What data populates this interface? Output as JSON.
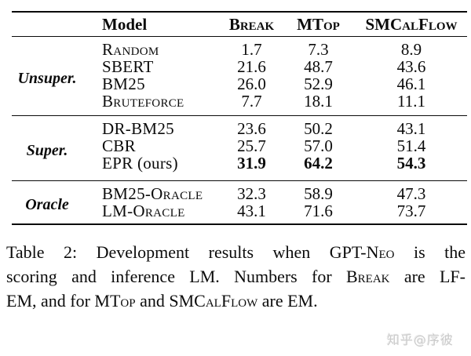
{
  "table": {
    "header": {
      "model": "Model",
      "cols": [
        "Break",
        "MTop",
        "SMCalFlow"
      ]
    },
    "groups": [
      {
        "label": "Unsuper.",
        "rows": [
          {
            "model": "Random",
            "sc": true,
            "values": [
              "1.7",
              "7.3",
              "8.9"
            ],
            "bold": false
          },
          {
            "model": "SBERT",
            "sc": false,
            "values": [
              "21.6",
              "48.7",
              "43.6"
            ],
            "bold": false
          },
          {
            "model": "BM25",
            "sc": false,
            "values": [
              "26.0",
              "52.9",
              "46.1"
            ],
            "bold": false
          },
          {
            "model": "Bruteforce",
            "sc": true,
            "values": [
              "7.7",
              "18.1",
              "11.1"
            ],
            "bold": false
          }
        ]
      },
      {
        "label": "Super.",
        "rows": [
          {
            "model": "DR-BM25",
            "sc": false,
            "values": [
              "23.6",
              "50.2",
              "43.1"
            ],
            "bold": false
          },
          {
            "model": "CBR",
            "sc": false,
            "values": [
              "25.7",
              "57.0",
              "51.4"
            ],
            "bold": false
          },
          {
            "model": "EPR (ours)",
            "sc": false,
            "values": [
              "31.9",
              "64.2",
              "54.3"
            ],
            "bold": true
          }
        ]
      },
      {
        "label": "Oracle",
        "rows": [
          {
            "model": "BM25-Oracle",
            "sc": true,
            "values": [
              "32.3",
              "58.9",
              "47.3"
            ],
            "bold": false
          },
          {
            "model": "LM-Oracle",
            "sc": true,
            "values": [
              "43.1",
              "71.6",
              "73.7"
            ],
            "bold": false
          }
        ]
      }
    ]
  },
  "caption": {
    "lines": [
      [
        {
          "t": "Table 2:  Development results when GPT-",
          "sc": false
        },
        {
          "t": "Neo",
          "sc": true
        },
        {
          "t": " is the",
          "sc": false
        }
      ],
      [
        {
          "t": "scoring and inference LM. Numbers for ",
          "sc": false
        },
        {
          "t": "Break",
          "sc": true
        },
        {
          "t": " are LF-",
          "sc": false
        }
      ],
      [
        {
          "t": "EM, and for ",
          "sc": false
        },
        {
          "t": "MTop",
          "sc": true
        },
        {
          "t": " and ",
          "sc": false
        },
        {
          "t": "SMCalFlow",
          "sc": true
        },
        {
          "t": " are EM.",
          "sc": false
        }
      ]
    ]
  },
  "watermark": {
    "text": "知乎@序彼"
  }
}
